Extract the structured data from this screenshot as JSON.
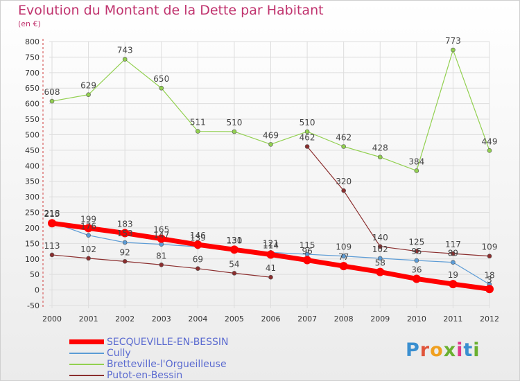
{
  "header": {
    "title": "Evolution du Montant de la Dette par Habitant",
    "subtitle": "(en €)"
  },
  "logo": {
    "text": "Proxiti"
  },
  "colors": {
    "title": "#c0336e",
    "axis_text": "#333333",
    "legend_text": "#5a6ad0",
    "grid": "#dddddd"
  },
  "chart_data": {
    "type": "line",
    "title": "Evolution du Montant de la Dette par Habitant",
    "subtitle": "(en €)",
    "x": [
      "2000",
      "2001",
      "2002",
      "2003",
      "2004",
      "2005",
      "2006",
      "2007",
      "2008",
      "2009",
      "2010",
      "2011",
      "2012"
    ],
    "ylim": [
      -50,
      800
    ],
    "yticks": [
      -50,
      0,
      50,
      100,
      150,
      200,
      250,
      300,
      350,
      400,
      450,
      500,
      550,
      600,
      650,
      700,
      750,
      800
    ],
    "grid": true,
    "legend_position": "bottom-left",
    "series": [
      {
        "name": "SECQUEVILLE-EN-BESSIN",
        "color": "#ff0000",
        "width": 7,
        "marker": 6,
        "values": [
          215,
          199,
          183,
          165,
          146,
          130,
          114,
          96,
          77,
          58,
          36,
          19,
          3
        ]
      },
      {
        "name": "Cully",
        "color": "#5b9bd5",
        "width": 1.2,
        "marker": 3,
        "values": [
          218,
          176,
          153,
          147,
          139,
          131,
          121,
          115,
          109,
          102,
          95,
          89,
          18
        ]
      },
      {
        "name": "Bretteville-l'Orgueilleuse",
        "color": "#92d050",
        "width": 1.2,
        "marker": 3,
        "values": [
          608,
          629,
          743,
          650,
          511,
          510,
          469,
          510,
          462,
          428,
          384,
          773,
          449
        ]
      },
      {
        "name": "Putot-en-Bessin",
        "color": "#8b2e2e",
        "width": 1.2,
        "marker": 3,
        "segments": [
          [
            0,
            6
          ],
          [
            7,
            12
          ]
        ],
        "values": [
          113,
          102,
          92,
          81,
          69,
          54,
          41,
          462,
          320,
          140,
          125,
          117,
          109
        ]
      }
    ]
  }
}
